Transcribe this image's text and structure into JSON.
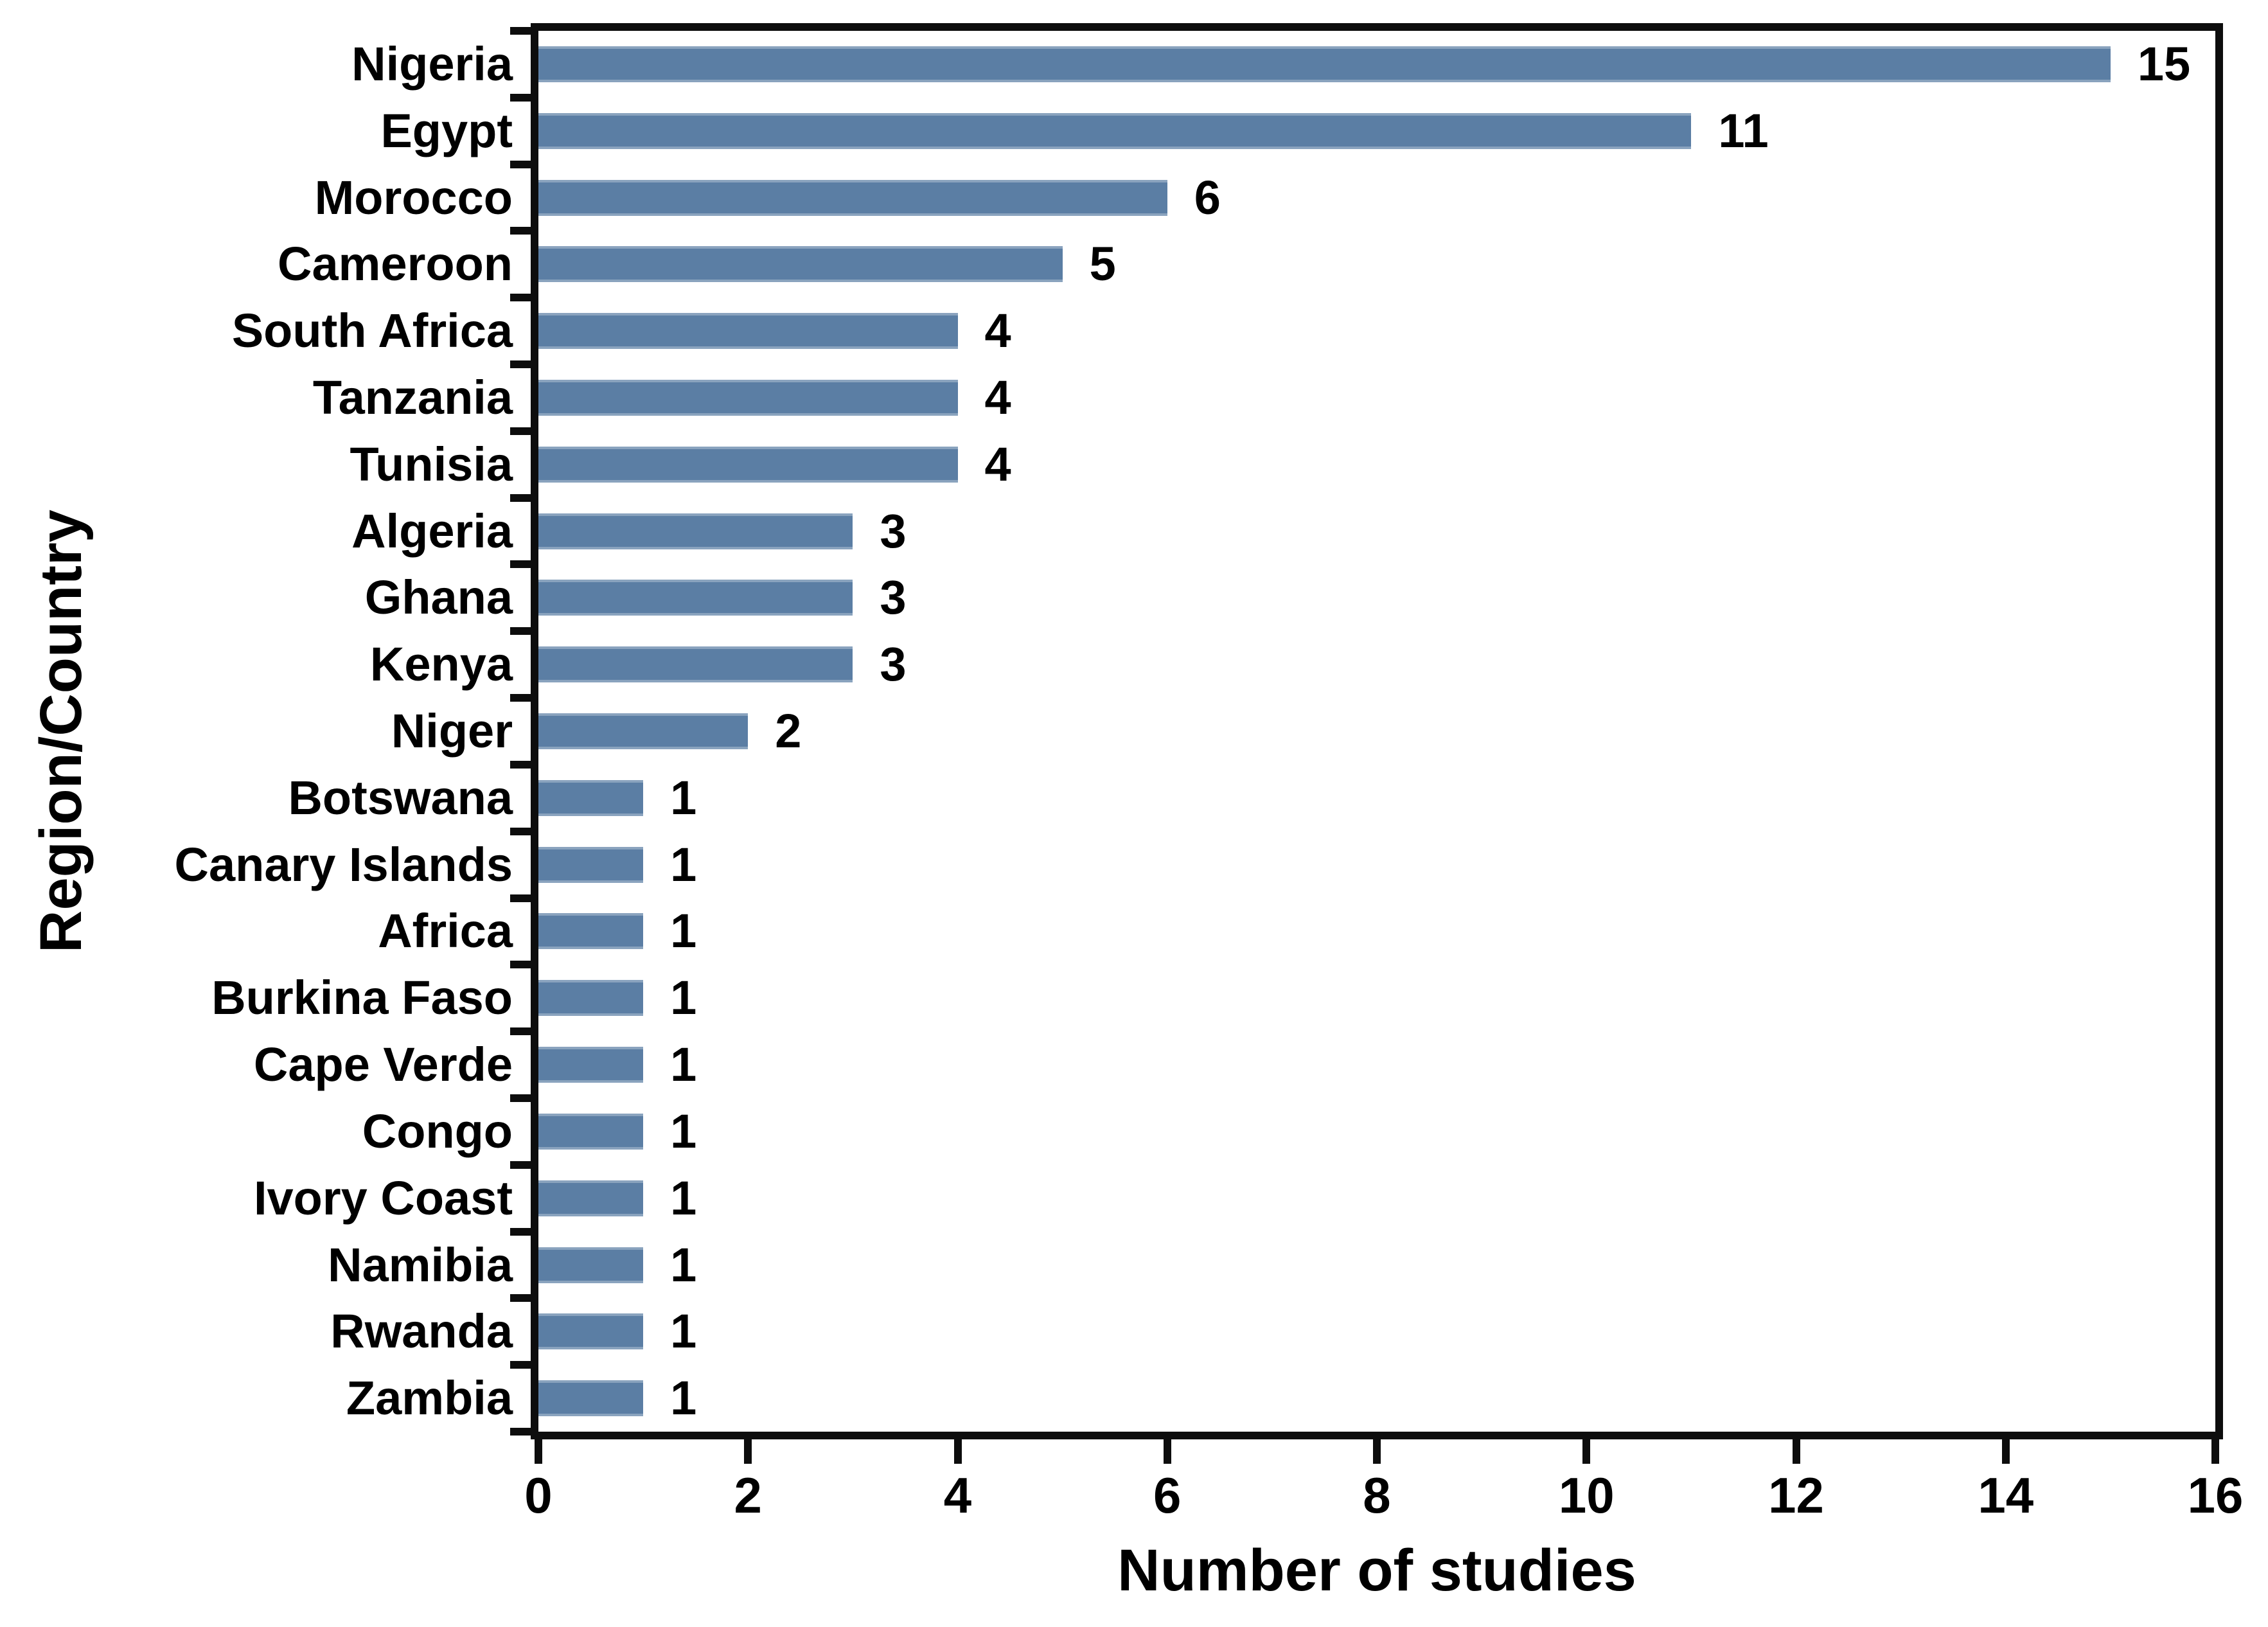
{
  "chart_data": {
    "type": "bar",
    "orientation": "horizontal",
    "title": "",
    "xlabel": "Number of studies",
    "ylabel": "Region/Country",
    "xlim": [
      0,
      16
    ],
    "x_ticks": [
      0,
      2,
      4,
      6,
      8,
      10,
      12,
      14,
      16
    ],
    "x_tick_labels": [
      "0",
      "2",
      "4",
      "6",
      "8",
      "10",
      "12",
      "14",
      "16"
    ],
    "grid": false,
    "legend": false,
    "categories": [
      "Nigeria",
      "Egypt",
      "Morocco",
      "Cameroon",
      "South Africa",
      "Tanzania",
      "Tunisia",
      "Algeria",
      "Ghana",
      "Kenya",
      "Niger",
      "Botswana",
      "Canary Islands",
      "Africa",
      "Burkina Faso",
      "Cape Verde",
      "Congo",
      "Ivory Coast",
      "Namibia",
      "Rwanda",
      "Zambia"
    ],
    "values": [
      15,
      11,
      6,
      5,
      4,
      4,
      4,
      3,
      3,
      3,
      2,
      1,
      1,
      1,
      1,
      1,
      1,
      1,
      1,
      1,
      1
    ],
    "data_labels": [
      "15",
      "11",
      "6",
      "5",
      "4",
      "4",
      "4",
      "3",
      "3",
      "3",
      "2",
      "1",
      "1",
      "1",
      "1",
      "1",
      "1",
      "1",
      "1",
      "1",
      "1"
    ]
  },
  "colors": {
    "bar": "#5b7ea4",
    "bar_edge_light": "#8aa3be",
    "axis": "#0d0d0d",
    "text": "#000000",
    "background": "#ffffff"
  }
}
